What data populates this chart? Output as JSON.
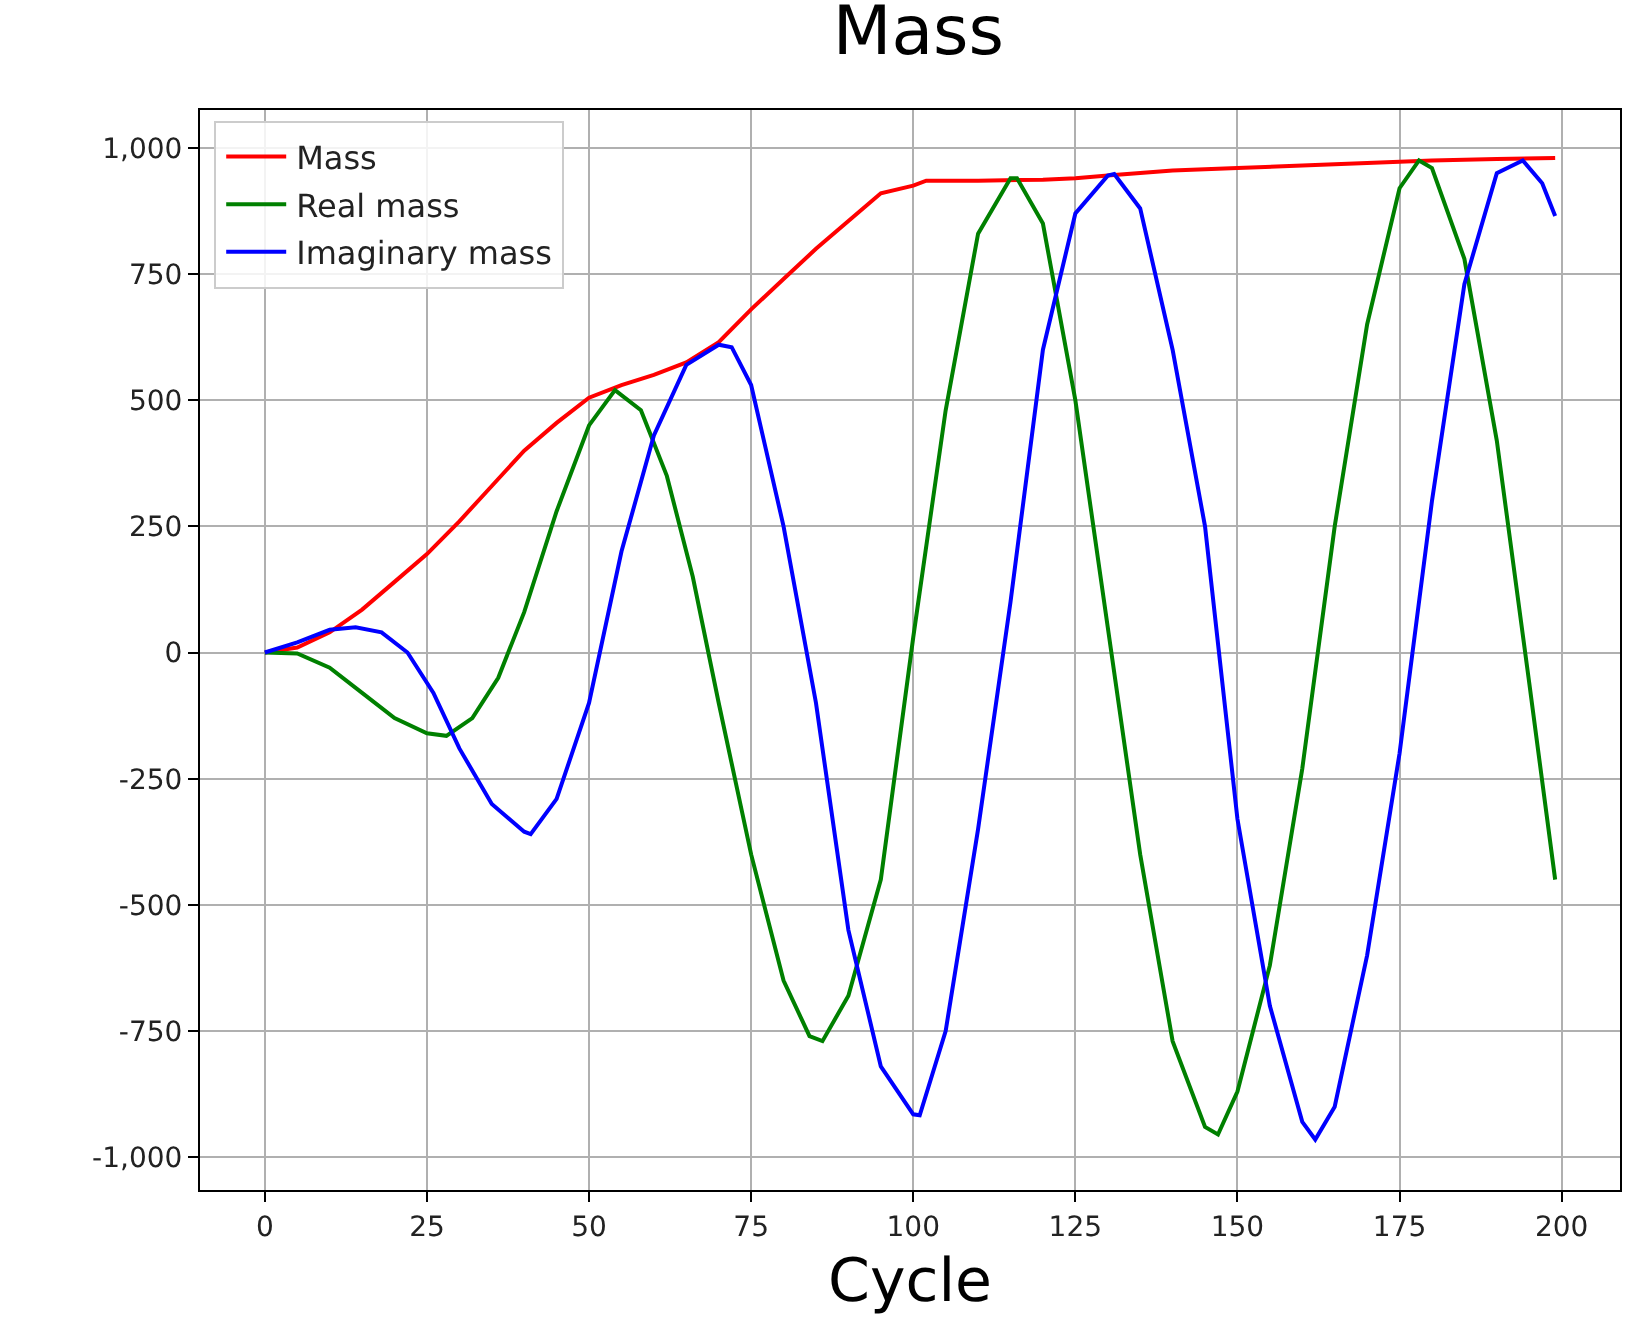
{
  "chart_data": {
    "type": "line",
    "title": "Mass",
    "xlabel": "Cycle",
    "xlim": [
      -10,
      209
    ],
    "xticks": [
      0,
      25,
      50,
      75,
      100,
      125,
      150,
      175,
      200
    ],
    "ylim": [
      -1065,
      1075
    ],
    "yticks": [
      {
        "value": -1000,
        "label": "-1,000"
      },
      -750,
      -500,
      -250,
      0,
      250,
      500,
      750,
      {
        "value": 1000,
        "label": "1,000"
      }
    ],
    "grid": true,
    "legend": "top left",
    "line_style": "solid",
    "marker": "none",
    "series": [
      {
        "name": "Mass",
        "color": "#ff0000",
        "x": [
          0,
          5,
          10,
          15,
          20,
          25,
          30,
          35,
          40,
          45,
          50,
          55,
          60,
          65,
          70,
          75,
          80,
          85,
          90,
          95,
          100,
          102,
          110,
          120,
          125,
          130,
          140,
          150,
          160,
          170,
          180,
          190,
          199
        ],
        "values": [
          0,
          10,
          40,
          85,
          140,
          195,
          260,
          330,
          400,
          455,
          505,
          530,
          550,
          575,
          615,
          680,
          740,
          800,
          855,
          910,
          925,
          935,
          935,
          937,
          940,
          945,
          955,
          960,
          965,
          970,
          975,
          978,
          980
        ]
      },
      {
        "name": "Real mass",
        "color": "#008000",
        "x": [
          0,
          5,
          10,
          15,
          20,
          25,
          28,
          32,
          36,
          40,
          45,
          50,
          54,
          58,
          62,
          66,
          70,
          75,
          80,
          84,
          86,
          90,
          95,
          100,
          105,
          110,
          115,
          116,
          120,
          125,
          130,
          135,
          140,
          145,
          147,
          150,
          155,
          160,
          165,
          170,
          175,
          178,
          180,
          185,
          190,
          195,
          199
        ],
        "values": [
          0,
          -2,
          -30,
          -80,
          -130,
          -160,
          -165,
          -130,
          -50,
          80,
          280,
          450,
          520,
          480,
          350,
          150,
          -100,
          -400,
          -650,
          -760,
          -770,
          -680,
          -450,
          30,
          480,
          830,
          940,
          940,
          850,
          500,
          50,
          -400,
          -770,
          -940,
          -955,
          -870,
          -620,
          -230,
          250,
          650,
          920,
          975,
          960,
          780,
          420,
          -60,
          -450
        ]
      },
      {
        "name": "Imaginary mass",
        "color": "#0000ff",
        "x": [
          0,
          5,
          10,
          14,
          18,
          22,
          26,
          30,
          35,
          40,
          41,
          45,
          50,
          55,
          60,
          65,
          70,
          72,
          75,
          80,
          85,
          90,
          95,
          100,
          101,
          105,
          110,
          115,
          120,
          125,
          130,
          131,
          135,
          140,
          145,
          150,
          155,
          160,
          162,
          165,
          170,
          175,
          180,
          185,
          190,
          194,
          197,
          199
        ],
        "values": [
          0,
          20,
          45,
          50,
          40,
          0,
          -80,
          -190,
          -300,
          -355,
          -360,
          -290,
          -100,
          200,
          430,
          570,
          610,
          605,
          530,
          250,
          -100,
          -550,
          -820,
          -915,
          -917,
          -750,
          -350,
          100,
          600,
          870,
          945,
          948,
          880,
          600,
          250,
          -330,
          -700,
          -930,
          -965,
          -900,
          -600,
          -200,
          300,
          730,
          950,
          975,
          930,
          865
        ]
      }
    ]
  }
}
